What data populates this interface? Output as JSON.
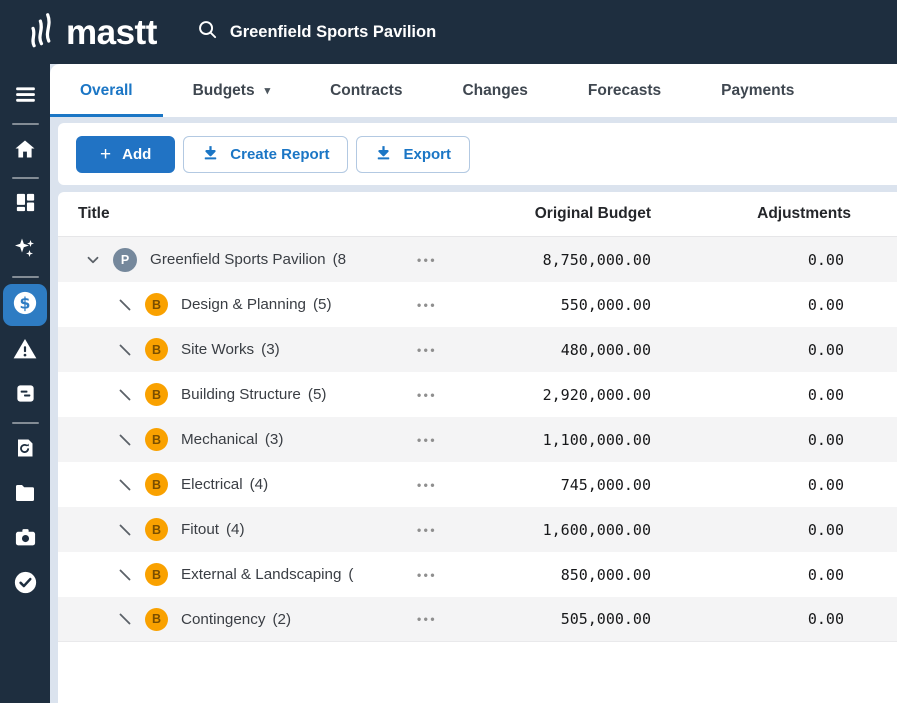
{
  "topbar": {
    "logo_text": "mastt",
    "search_value": "Greenfield Sports Pavilion"
  },
  "tabs": [
    {
      "label": "Overall",
      "active": true,
      "caret": false
    },
    {
      "label": "Budgets",
      "active": false,
      "caret": true
    },
    {
      "label": "Contracts",
      "active": false,
      "caret": false
    },
    {
      "label": "Changes",
      "active": false,
      "caret": false
    },
    {
      "label": "Forecasts",
      "active": false,
      "caret": false
    },
    {
      "label": "Payments",
      "active": false,
      "caret": false
    }
  ],
  "toolbar": {
    "add": "Add",
    "create_report": "Create Report",
    "export": "Export"
  },
  "table": {
    "columns": {
      "title": "Title",
      "original_budget": "Original Budget",
      "adjustments": "Adjustments"
    },
    "rows": [
      {
        "level": 0,
        "badge": "P",
        "expanded": true,
        "title": "Greenfield Sports Pavilion",
        "count": "(8",
        "original_budget": "8,750,000.00",
        "adjustments": "0.00"
      },
      {
        "level": 1,
        "badge": "B",
        "expanded": false,
        "title": "Design & Planning",
        "count": "(5)",
        "original_budget": "550,000.00",
        "adjustments": "0.00"
      },
      {
        "level": 1,
        "badge": "B",
        "expanded": false,
        "title": "Site Works",
        "count": "(3)",
        "original_budget": "480,000.00",
        "adjustments": "0.00"
      },
      {
        "level": 1,
        "badge": "B",
        "expanded": false,
        "title": "Building Structure",
        "count": "(5)",
        "original_budget": "2,920,000.00",
        "adjustments": "0.00"
      },
      {
        "level": 1,
        "badge": "B",
        "expanded": false,
        "title": "Mechanical",
        "count": "(3)",
        "original_budget": "1,100,000.00",
        "adjustments": "0.00"
      },
      {
        "level": 1,
        "badge": "B",
        "expanded": false,
        "title": "Electrical",
        "count": "(4)",
        "original_budget": "745,000.00",
        "adjustments": "0.00"
      },
      {
        "level": 1,
        "badge": "B",
        "expanded": false,
        "title": "Fitout",
        "count": "(4)",
        "original_budget": "1,600,000.00",
        "adjustments": "0.00"
      },
      {
        "level": 1,
        "badge": "B",
        "expanded": false,
        "title": "External & Landscaping",
        "count": "(",
        "original_budget": "850,000.00",
        "adjustments": "0.00"
      },
      {
        "level": 1,
        "badge": "B",
        "expanded": false,
        "title": "Contingency",
        "count": "(2)",
        "original_budget": "505,000.00",
        "adjustments": "0.00"
      }
    ]
  },
  "sidebar": {
    "items": [
      {
        "name": "menu",
        "active": false,
        "divider_after": true
      },
      {
        "name": "home",
        "active": false,
        "divider_after": true
      },
      {
        "name": "dashboard",
        "active": false,
        "divider_after": false
      },
      {
        "name": "sparkles",
        "active": false,
        "divider_after": true
      },
      {
        "name": "budget-dollar",
        "active": true,
        "divider_after": false
      },
      {
        "name": "warning",
        "active": false,
        "divider_after": false
      },
      {
        "name": "notes",
        "active": false,
        "divider_after": true
      },
      {
        "name": "history",
        "active": false,
        "divider_after": false
      },
      {
        "name": "folder",
        "active": false,
        "divider_after": false
      },
      {
        "name": "camera",
        "active": false,
        "divider_after": false
      },
      {
        "name": "check",
        "active": false,
        "divider_after": false
      }
    ]
  },
  "icons": {
    "plus_glyph": "+",
    "budgets_caret": "▾",
    "row_menu_glyph": "•••"
  },
  "colors": {
    "topbar_bg": "#1E2E3F",
    "accent_blue": "#1B76C5",
    "add_button_bg": "#2173C4",
    "sidebar_active_bg": "#2E7CC3",
    "badge_b_bg": "#F9A100",
    "badge_b_text": "#7A4F01",
    "badge_p_bg": "#75889C",
    "row_stripe": "#F4F4F5",
    "gutter_bg": "#DBE3EE"
  }
}
